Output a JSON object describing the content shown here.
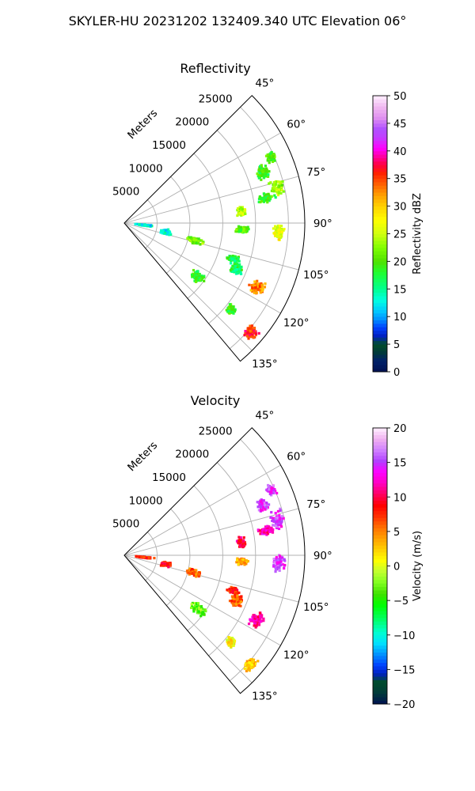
{
  "figure": {
    "suptitle": "SKYLER-HU  20231202  132409.340 UTC Elevation 06°"
  },
  "chart_data": [
    {
      "type": "heatmap",
      "projection": "polar-sector",
      "title": "Reflectivity",
      "radial_label": "Meters",
      "range_rings": [
        5000,
        10000,
        15000,
        20000,
        25000
      ],
      "range_ring_labels": [
        "5000",
        "10000",
        "15000",
        "20000",
        "25000"
      ],
      "azimuth_range": [
        45,
        140
      ],
      "azimuth_ticks": [
        45,
        60,
        75,
        90,
        105,
        120,
        135
      ],
      "azimuth_tick_labels": [
        "45°",
        "60°",
        "75°",
        "90°",
        "105°",
        "120°",
        "135°"
      ],
      "max_range": 27500,
      "grid": true,
      "colorbar": {
        "label": "Reflectivity dBZ",
        "range": [
          0,
          50
        ],
        "ticks": [
          0,
          5,
          10,
          15,
          20,
          25,
          30,
          35,
          40,
          45,
          50
        ]
      },
      "echoes": [
        {
          "az": 66,
          "r": 24500,
          "value": 20
        },
        {
          "az": 70,
          "r": 22500,
          "value": 19
        },
        {
          "az": 77,
          "r": 24000,
          "value": 23
        },
        {
          "az": 80,
          "r": 22000,
          "value": 19
        },
        {
          "az": 84,
          "r": 18000,
          "value": 24
        },
        {
          "az": 93,
          "r": 23500,
          "value": 27
        },
        {
          "az": 93,
          "r": 18000,
          "value": 20
        },
        {
          "az": 104,
          "r": 11000,
          "value": 22
        },
        {
          "az": 102,
          "r": 6500,
          "value": 13
        },
        {
          "az": 108,
          "r": 17500,
          "value": 17
        },
        {
          "az": 116,
          "r": 22500,
          "value": 33
        },
        {
          "az": 126,
          "r": 14000,
          "value": 19
        },
        {
          "az": 129,
          "r": 21000,
          "value": 19
        },
        {
          "az": 131,
          "r": 25500,
          "value": 36
        },
        {
          "az": 112,
          "r": 18500,
          "value": 17
        },
        {
          "az": 96,
          "r": 3000,
          "value": 13
        }
      ]
    },
    {
      "type": "heatmap",
      "projection": "polar-sector",
      "title": "Velocity",
      "radial_label": "Meters",
      "range_rings": [
        5000,
        10000,
        15000,
        20000,
        25000
      ],
      "range_ring_labels": [
        "5000",
        "10000",
        "15000",
        "20000",
        "25000"
      ],
      "azimuth_range": [
        45,
        140
      ],
      "azimuth_ticks": [
        45,
        60,
        75,
        90,
        105,
        120,
        135
      ],
      "azimuth_tick_labels": [
        "45°",
        "60°",
        "75°",
        "90°",
        "105°",
        "120°",
        "135°"
      ],
      "max_range": 27500,
      "grid": true,
      "colorbar": {
        "label": "Velocity (m/s)",
        "range": [
          -20,
          20
        ],
        "ticks": [
          -20,
          -15,
          -10,
          -5,
          0,
          5,
          10,
          15,
          20
        ]
      },
      "echoes": [
        {
          "az": 66,
          "r": 24500,
          "value": 15
        },
        {
          "az": 70,
          "r": 22500,
          "value": 15
        },
        {
          "az": 77,
          "r": 24000,
          "value": 15
        },
        {
          "az": 80,
          "r": 22000,
          "value": 12
        },
        {
          "az": 84,
          "r": 18000,
          "value": 10
        },
        {
          "az": 93,
          "r": 23500,
          "value": 15
        },
        {
          "az": 93,
          "r": 18000,
          "value": 4
        },
        {
          "az": 104,
          "r": 11000,
          "value": 6
        },
        {
          "az": 102,
          "r": 6500,
          "value": 8
        },
        {
          "az": 108,
          "r": 17500,
          "value": 8
        },
        {
          "az": 116,
          "r": 22500,
          "value": 11
        },
        {
          "az": 126,
          "r": 14000,
          "value": -3
        },
        {
          "az": 129,
          "r": 21000,
          "value": 1
        },
        {
          "az": 131,
          "r": 25500,
          "value": 3
        },
        {
          "az": 112,
          "r": 18500,
          "value": 6
        },
        {
          "az": 96,
          "r": 3000,
          "value": 8
        }
      ]
    }
  ]
}
